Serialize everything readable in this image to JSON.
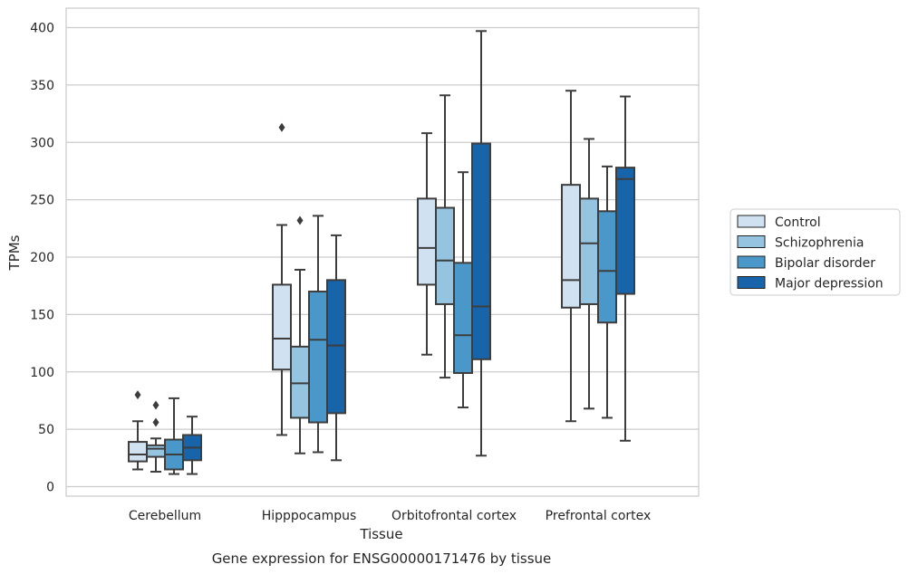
{
  "caption": "Gene expression for ENSG00000171476 by tissue",
  "chart_data": {
    "type": "box",
    "title": "",
    "xlabel": "Tissue",
    "ylabel": "TPMs",
    "ylim": [
      -8,
      416
    ],
    "yticks": [
      0,
      50,
      100,
      150,
      200,
      250,
      300,
      350,
      400
    ],
    "grid": "horizontal",
    "legend_placement": "right",
    "categories": [
      "Cerebellum",
      "Hipppocampus",
      "Orbitofrontal cortex",
      "Prefrontal cortex"
    ],
    "series": [
      {
        "name": "Control",
        "color": "#d0e1f2",
        "boxes": [
          {
            "whislo": 15,
            "q1": 22,
            "med": 28,
            "q3": 39,
            "whishi": 57,
            "fliers": [
              80
            ]
          },
          {
            "whislo": 45,
            "q1": 102,
            "med": 129,
            "q3": 176,
            "whishi": 228,
            "fliers": [
              313
            ]
          },
          {
            "whislo": 115,
            "q1": 176,
            "med": 208,
            "q3": 251,
            "whishi": 308,
            "fliers": []
          },
          {
            "whislo": 57,
            "q1": 156,
            "med": 180,
            "q3": 263,
            "whishi": 345,
            "fliers": []
          }
        ]
      },
      {
        "name": "Schizophrenia",
        "color": "#94c4df",
        "boxes": [
          {
            "whislo": 13,
            "q1": 26,
            "med": 33,
            "q3": 36,
            "whishi": 42,
            "fliers": [
              56,
              71
            ]
          },
          {
            "whislo": 29,
            "q1": 60,
            "med": 90,
            "q3": 122,
            "whishi": 189,
            "fliers": [
              232
            ]
          },
          {
            "whislo": 95,
            "q1": 159,
            "med": 197,
            "q3": 243,
            "whishi": 341,
            "fliers": []
          },
          {
            "whislo": 68,
            "q1": 159,
            "med": 212,
            "q3": 251,
            "whishi": 303,
            "fliers": []
          }
        ]
      },
      {
        "name": "Bipolar disorder",
        "color": "#4a98c9",
        "boxes": [
          {
            "whislo": 11,
            "q1": 15,
            "med": 28,
            "q3": 41,
            "whishi": 77,
            "fliers": []
          },
          {
            "whislo": 30,
            "q1": 56,
            "med": 128,
            "q3": 170,
            "whishi": 236,
            "fliers": []
          },
          {
            "whislo": 69,
            "q1": 99,
            "med": 132,
            "q3": 195,
            "whishi": 274,
            "fliers": []
          },
          {
            "whislo": 60,
            "q1": 143,
            "med": 188,
            "q3": 240,
            "whishi": 279,
            "fliers": []
          }
        ]
      },
      {
        "name": "Major depression",
        "color": "#1764ab",
        "boxes": [
          {
            "whislo": 11,
            "q1": 23,
            "med": 34,
            "q3": 45,
            "whishi": 61,
            "fliers": []
          },
          {
            "whislo": 23,
            "q1": 64,
            "med": 123,
            "q3": 180,
            "whishi": 219,
            "fliers": []
          },
          {
            "whislo": 27,
            "q1": 111,
            "med": 157,
            "q3": 299,
            "whishi": 397,
            "fliers": []
          },
          {
            "whislo": 40,
            "q1": 168,
            "med": 268,
            "q3": 278,
            "whishi": 340,
            "fliers": []
          }
        ]
      }
    ]
  }
}
